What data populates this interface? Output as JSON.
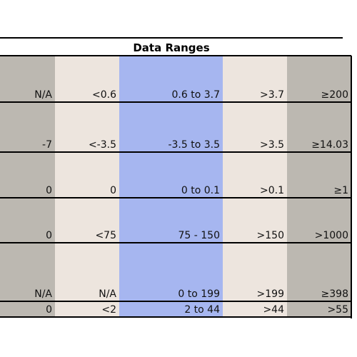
{
  "header": {
    "title": "Data Ranges"
  },
  "table": {
    "rows": [
      [
        "N/A",
        "<0.6",
        "0.6 to 3.7",
        ">3.7",
        "≥200"
      ],
      [
        "-7",
        "<-3.5",
        "-3.5 to 3.5",
        ">3.5",
        "≥14.03"
      ],
      [
        "0",
        "0",
        "0 to 0.1",
        ">0.1",
        "≥1"
      ],
      [
        "0",
        "<75",
        "75 - 150",
        ">150",
        ">1000"
      ],
      [
        "N/A",
        "N/A",
        "0 to 199",
        ">199",
        "≥398"
      ],
      [
        "0",
        "<2",
        "2 to 44",
        ">44",
        ">55"
      ]
    ]
  }
}
